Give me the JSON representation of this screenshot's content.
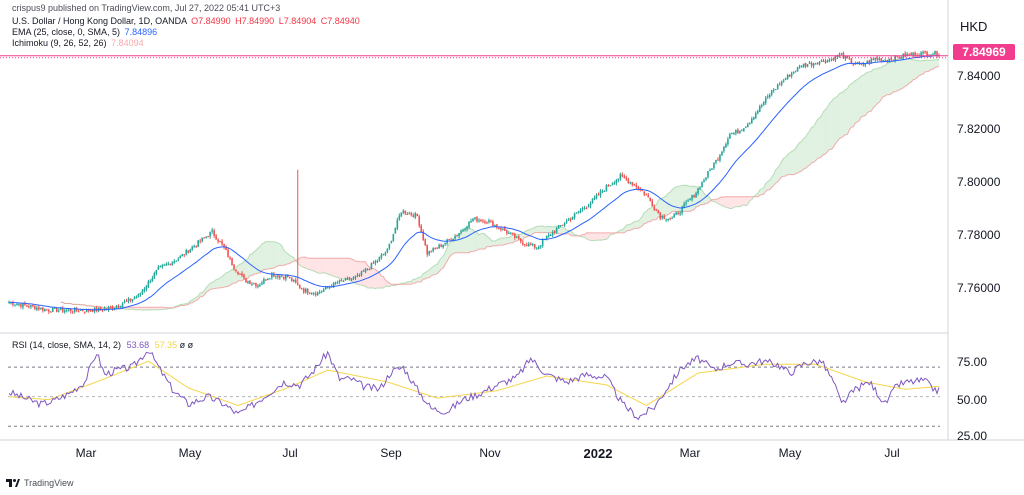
{
  "header": {
    "publish_text": "crispus9 published on TradingView.com, Jul 27, 2022 05:41 UTC+3",
    "symbol_text": "U.S. Dollar / Hong Kong Dollar, 1D, OANDA",
    "ohlc": {
      "o": "O7.84990",
      "h": "H7.84990",
      "l": "L7.84904",
      "c": "C7.84940"
    },
    "ema_label": "EMA (25, close, 0, SMA, 5)",
    "ema_value": "7.84896",
    "ichimoku_label": "Ichimoku (9, 26, 52, 26)",
    "ichimoku_value": "7.84094"
  },
  "currency": "HKD",
  "last_price": "7.84969",
  "rsi_legend": {
    "label": "RSI (14, close, SMA, 14, 2)",
    "rsi_value": "53.68",
    "sma_value": "57.35",
    "extra1": "ø",
    "extra2": "ø"
  },
  "footer": {
    "brand": "TradingView",
    "logo_icon": "tradingview-logo-icon"
  },
  "colors": {
    "up": "#26a69a",
    "down": "#ef5350",
    "ema": "#2962ff",
    "rsi": "#7e57c2",
    "rsi_sma": "#f6d54a",
    "cloud_bull": "#c8e6c9",
    "cloud_bear": "#ffcdd2",
    "price_line": "#f23d8e"
  },
  "chart_data": [
    {
      "type": "candlestick",
      "ylim": [
        7.745,
        7.853
      ],
      "y_ticks": [
        "7.84000",
        "7.82000",
        "7.80000",
        "7.78000",
        "7.76000"
      ],
      "x_ticks": [
        "Mar",
        "May",
        "Jul",
        "Sep",
        "Nov",
        "2022",
        "Mar",
        "May",
        "Jul"
      ],
      "close_path": [
        [
          0,
          7.7555
        ],
        [
          20,
          7.7525
        ],
        [
          40,
          7.7525
        ],
        [
          50,
          7.753
        ],
        [
          60,
          7.756
        ],
        [
          65,
          7.758
        ],
        [
          75,
          7.768
        ],
        [
          85,
          7.772
        ],
        [
          95,
          7.778
        ],
        [
          102,
          7.782
        ],
        [
          108,
          7.776
        ],
        [
          112,
          7.77
        ],
        [
          118,
          7.764
        ],
        [
          125,
          7.762
        ],
        [
          132,
          7.766
        ],
        [
          140,
          7.765
        ],
        [
          148,
          7.76
        ],
        [
          155,
          7.759
        ],
        [
          165,
          7.763
        ],
        [
          175,
          7.765
        ],
        [
          183,
          7.77
        ],
        [
          190,
          7.775
        ],
        [
          197,
          7.79
        ],
        [
          205,
          7.788
        ],
        [
          210,
          7.774
        ],
        [
          217,
          7.777
        ],
        [
          225,
          7.781
        ],
        [
          233,
          7.787
        ],
        [
          241,
          7.786
        ],
        [
          250,
          7.782
        ],
        [
          258,
          7.778
        ],
        [
          265,
          7.776
        ],
        [
          270,
          7.78
        ],
        [
          278,
          7.785
        ],
        [
          285,
          7.789
        ],
        [
          292,
          7.793
        ],
        [
          300,
          7.799
        ],
        [
          307,
          7.803
        ],
        [
          314,
          7.8
        ],
        [
          320,
          7.796
        ],
        [
          327,
          7.788
        ],
        [
          333,
          7.787
        ],
        [
          338,
          7.791
        ],
        [
          344,
          7.796
        ],
        [
          350,
          7.803
        ],
        [
          356,
          7.81
        ],
        [
          362,
          7.819
        ],
        [
          366,
          7.82
        ],
        [
          371,
          7.823
        ],
        [
          377,
          7.829
        ],
        [
          383,
          7.835
        ],
        [
          390,
          7.84
        ],
        [
          398,
          7.845
        ],
        [
          405,
          7.846
        ],
        [
          412,
          7.847
        ],
        [
          418,
          7.849
        ],
        [
          423,
          7.846
        ],
        [
          428,
          7.845
        ],
        [
          435,
          7.8475
        ],
        [
          440,
          7.847
        ],
        [
          446,
          7.848
        ],
        [
          452,
          7.849
        ],
        [
          460,
          7.8495
        ],
        [
          467,
          7.8494
        ]
      ],
      "series": [
        {
          "name": "EMA (25)",
          "role": "ema"
        },
        {
          "name": "Ichimoku (9, 26, 52, 26)",
          "role": "cloud"
        }
      ]
    },
    {
      "type": "line",
      "name": "RSI",
      "ylim": [
        22,
        85
      ],
      "y_ticks": [
        "75.00",
        "50.00",
        "25.00"
      ],
      "levels": [
        70,
        50,
        30
      ],
      "values": [
        [
          0,
          53
        ],
        [
          8,
          49
        ],
        [
          16,
          45
        ],
        [
          22,
          47
        ],
        [
          30,
          52
        ],
        [
          38,
          60
        ],
        [
          44,
          80
        ],
        [
          48,
          65
        ],
        [
          54,
          68
        ],
        [
          62,
          70
        ],
        [
          70,
          82
        ],
        [
          76,
          68
        ],
        [
          82,
          55
        ],
        [
          90,
          45
        ],
        [
          100,
          50
        ],
        [
          108,
          45
        ],
        [
          115,
          38
        ],
        [
          122,
          44
        ],
        [
          130,
          52
        ],
        [
          138,
          60
        ],
        [
          146,
          58
        ],
        [
          152,
          66
        ],
        [
          160,
          80
        ],
        [
          166,
          62
        ],
        [
          172,
          62
        ],
        [
          178,
          57
        ],
        [
          186,
          55
        ],
        [
          192,
          67
        ],
        [
          198,
          70
        ],
        [
          204,
          57
        ],
        [
          212,
          42
        ],
        [
          220,
          40
        ],
        [
          228,
          48
        ],
        [
          236,
          52
        ],
        [
          245,
          58
        ],
        [
          255,
          63
        ],
        [
          262,
          76
        ],
        [
          270,
          65
        ],
        [
          280,
          60
        ],
        [
          290,
          65
        ],
        [
          300,
          63
        ],
        [
          308,
          45
        ],
        [
          316,
          36
        ],
        [
          324,
          43
        ],
        [
          330,
          55
        ],
        [
          338,
          70
        ],
        [
          346,
          76
        ],
        [
          354,
          68
        ],
        [
          362,
          73
        ],
        [
          370,
          72
        ],
        [
          378,
          74
        ],
        [
          386,
          72
        ],
        [
          392,
          66
        ],
        [
          400,
          73
        ],
        [
          408,
          74
        ],
        [
          414,
          60
        ],
        [
          418,
          45
        ],
        [
          425,
          55
        ],
        [
          432,
          60
        ],
        [
          440,
          45
        ],
        [
          446,
          58
        ],
        [
          452,
          60
        ],
        [
          460,
          61
        ],
        [
          463,
          56
        ],
        [
          467,
          54
        ]
      ],
      "sma_values": [
        [
          0,
          50
        ],
        [
          20,
          48
        ],
        [
          44,
          60
        ],
        [
          70,
          74
        ],
        [
          90,
          56
        ],
        [
          115,
          44
        ],
        [
          140,
          56
        ],
        [
          160,
          68
        ],
        [
          190,
          60
        ],
        [
          215,
          49
        ],
        [
          245,
          54
        ],
        [
          270,
          64
        ],
        [
          300,
          58
        ],
        [
          320,
          44
        ],
        [
          346,
          66
        ],
        [
          380,
          72
        ],
        [
          405,
          72
        ],
        [
          430,
          60
        ],
        [
          450,
          55
        ],
        [
          467,
          57
        ]
      ]
    }
  ]
}
